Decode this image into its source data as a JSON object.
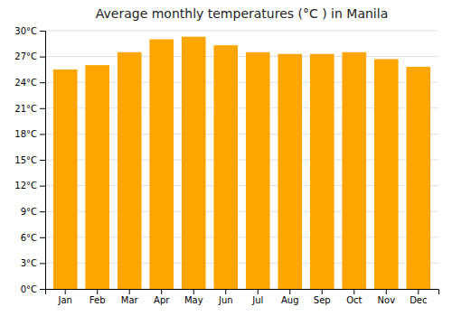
{
  "chart_data": {
    "type": "bar",
    "title": "Average monthly temperatures (°C ) in Manila",
    "categories": [
      "Jan",
      "Feb",
      "Mar",
      "Apr",
      "May",
      "Jun",
      "Jul",
      "Aug",
      "Sep",
      "Oct",
      "Nov",
      "Dec"
    ],
    "values": [
      25.5,
      26.0,
      27.5,
      29.0,
      29.3,
      28.3,
      27.5,
      27.3,
      27.3,
      27.5,
      26.7,
      25.8
    ],
    "color": "#FFA500",
    "ylim": [
      0,
      30
    ],
    "yticks": [
      {
        "value": 0,
        "label": "0°C"
      },
      {
        "value": 3,
        "label": "3°C"
      },
      {
        "value": 6,
        "label": "6°C"
      },
      {
        "value": 9,
        "label": "9°C"
      },
      {
        "value": 12,
        "label": "12°C"
      },
      {
        "value": 15,
        "label": "15°C"
      },
      {
        "value": 18,
        "label": "18°C"
      },
      {
        "value": 21,
        "label": "21°C"
      },
      {
        "value": 24,
        "label": "24°C"
      },
      {
        "value": 27,
        "label": "27°C"
      },
      {
        "value": 30,
        "label": "30°C"
      }
    ],
    "grid": true
  }
}
